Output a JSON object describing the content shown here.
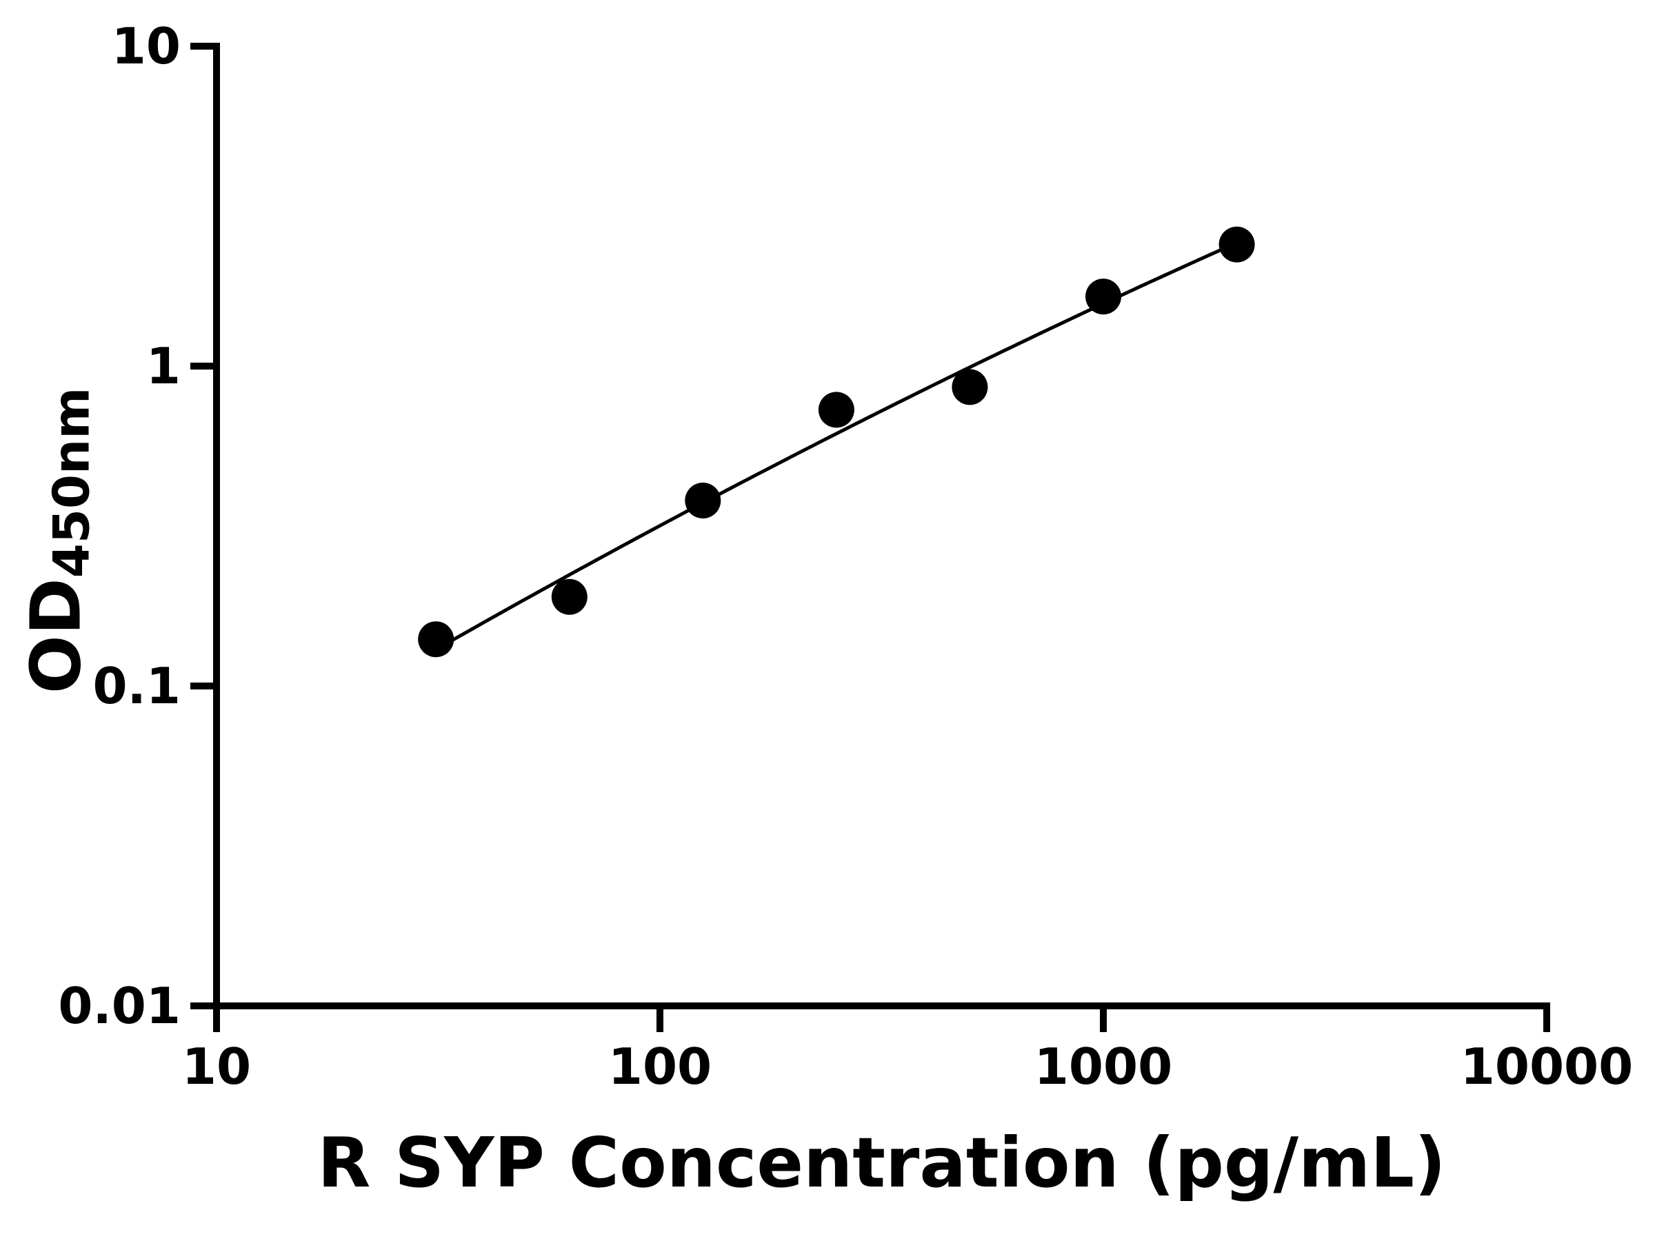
{
  "chart_data": {
    "type": "scatter",
    "title": "",
    "xlabel": "R SYP Concentration (pg/mL)",
    "ylabel": "OD450nm",
    "ylabel_main": "OD",
    "ylabel_sub": "450nm",
    "x_scale": "log",
    "y_scale": "log",
    "xlim": [
      10,
      10000
    ],
    "ylim": [
      0.01,
      10
    ],
    "x_ticks": [
      "10",
      "100",
      "1000",
      "10000"
    ],
    "y_ticks": [
      "10",
      "1",
      "0.1",
      "0.01"
    ],
    "grid": false,
    "legend": "none",
    "marker_color": "#000000",
    "line_color": "#000000",
    "axis_color": "#000000",
    "background": "#ffffff",
    "fit_line": true,
    "points": [
      {
        "x": 31.25,
        "y": 0.14
      },
      {
        "x": 62.5,
        "y": 0.19
      },
      {
        "x": 125,
        "y": 0.38
      },
      {
        "x": 250,
        "y": 0.73
      },
      {
        "x": 500,
        "y": 0.86
      },
      {
        "x": 1000,
        "y": 1.65
      },
      {
        "x": 2000,
        "y": 2.4
      }
    ]
  }
}
